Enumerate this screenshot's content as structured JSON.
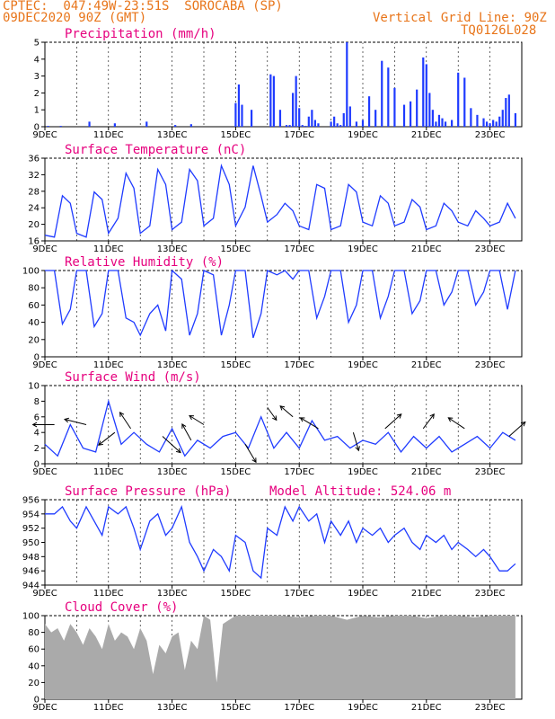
{
  "header": {
    "line1": "CPTEC:  047:49W-23:51S  SOROCABA (SP)",
    "line2": "09DEC2020 90Z (GMT)",
    "grid_note": "Vertical Grid Line: 90Z",
    "code": "TQ0126L028"
  },
  "chart_data": [
    {
      "type": "bar",
      "title": "Precipitation (mm/h)",
      "ylim": [
        0,
        5
      ],
      "yticks": [
        "0",
        "1",
        "2",
        "3",
        "4",
        "5"
      ],
      "x_labels": [
        "9DEC",
        "11DEC",
        "13DEC",
        "15DEC",
        "17DEC",
        "19DEC",
        "21DEC",
        "23DEC"
      ],
      "color": "#1f3bff",
      "x": [
        0.1,
        0.5,
        1.4,
        2.2,
        3.2,
        4.1,
        4.6,
        6.0,
        6.1,
        6.2,
        6.5,
        7.1,
        7.2,
        7.4,
        7.6,
        7.7,
        7.8,
        7.9,
        8.0,
        8.1,
        8.2,
        8.3,
        8.4,
        8.5,
        8.6,
        9.0,
        9.1,
        9.2,
        9.3,
        9.4,
        9.5,
        9.6,
        9.8,
        10.0,
        10.2,
        10.4,
        10.6,
        10.8,
        11.0,
        11.3,
        11.5,
        11.7,
        11.9,
        12.0,
        12.1,
        12.2,
        12.3,
        12.4,
        12.5,
        12.6,
        12.8,
        13.0,
        13.2,
        13.4,
        13.6,
        13.8,
        13.9,
        14.0,
        14.1,
        14.2,
        14.3,
        14.4,
        14.5,
        14.6,
        14.8
      ],
      "values": [
        0.05,
        0.05,
        0.3,
        0.2,
        0.3,
        0.1,
        0.15,
        1.4,
        2.5,
        1.3,
        1.0,
        3.1,
        3.0,
        1.0,
        0.1,
        0.1,
        2.0,
        3.0,
        1.1,
        0.1,
        0.05,
        0.6,
        1.0,
        0.4,
        0.2,
        0.3,
        0.6,
        0.2,
        0.1,
        0.8,
        5.0,
        1.2,
        0.3,
        0.4,
        1.8,
        1.0,
        3.9,
        3.5,
        2.3,
        1.3,
        1.5,
        2.2,
        4.1,
        3.7,
        2.0,
        1.0,
        0.3,
        0.7,
        0.5,
        0.3,
        0.4,
        3.2,
        2.9,
        1.1,
        0.7,
        0.5,
        0.3,
        0.2,
        0.4,
        0.3,
        0.6,
        1.0,
        1.7,
        1.9,
        0.8
      ]
    },
    {
      "type": "line",
      "title": "Surface Temperature (nC)",
      "ylim": [
        16,
        38
      ],
      "yticks": [
        "16",
        "20",
        "24",
        "28",
        "32",
        "36"
      ],
      "x_labels": [
        "9DEC",
        "11DEC",
        "13DEC",
        "15DEC",
        "17DEC",
        "19DEC",
        "21DEC",
        "23DEC"
      ],
      "color": "#1f3bff",
      "x": [
        0,
        0.3,
        0.55,
        0.8,
        1.0,
        1.3,
        1.55,
        1.8,
        2.0,
        2.3,
        2.55,
        2.8,
        3.0,
        3.3,
        3.55,
        3.8,
        4.0,
        4.3,
        4.55,
        4.8,
        5.0,
        5.3,
        5.55,
        5.8,
        6.0,
        6.3,
        6.55,
        6.8,
        7.0,
        7.3,
        7.55,
        7.8,
        8.0,
        8.3,
        8.55,
        8.8,
        9.0,
        9.3,
        9.55,
        9.8,
        10.0,
        10.3,
        10.55,
        10.8,
        11.0,
        11.3,
        11.55,
        11.8,
        12.0,
        12.3,
        12.55,
        12.8,
        13.0,
        13.3,
        13.55,
        13.8,
        14.0,
        14.3,
        14.55,
        14.8
      ],
      "values": [
        17.5,
        17,
        28,
        26,
        18,
        17,
        29,
        27,
        18,
        22,
        34,
        30,
        18,
        20,
        35,
        31,
        19,
        21,
        35,
        32,
        20,
        22,
        36,
        31,
        20,
        25,
        36,
        28,
        21,
        23,
        26,
        24,
        20,
        19,
        31,
        30,
        19,
        20,
        31,
        29,
        21,
        20,
        28,
        26,
        20,
        21,
        27,
        25,
        19,
        20,
        26,
        24,
        21,
        20,
        24,
        22,
        20,
        21,
        26,
        22
      ]
    },
    {
      "type": "line",
      "title": "Relative Humidity (%)",
      "ylim": [
        0,
        100
      ],
      "yticks": [
        "0",
        "20",
        "40",
        "60",
        "80",
        "100"
      ],
      "x_labels": [
        "9DEC",
        "11DEC",
        "13DEC",
        "15DEC",
        "17DEC",
        "19DEC",
        "21DEC",
        "23DEC"
      ],
      "color": "#1f3bff",
      "x": [
        0,
        0.3,
        0.55,
        0.8,
        1.0,
        1.3,
        1.55,
        1.8,
        2.0,
        2.3,
        2.55,
        2.8,
        3.0,
        3.3,
        3.55,
        3.8,
        4.0,
        4.3,
        4.55,
        4.8,
        5.0,
        5.3,
        5.55,
        5.8,
        6.0,
        6.3,
        6.55,
        6.8,
        7.0,
        7.3,
        7.55,
        7.8,
        8.0,
        8.3,
        8.55,
        8.8,
        9.0,
        9.3,
        9.55,
        9.8,
        10.0,
        10.3,
        10.55,
        10.8,
        11.0,
        11.3,
        11.55,
        11.8,
        12.0,
        12.3,
        12.55,
        12.8,
        13.0,
        13.3,
        13.55,
        13.8,
        14.0,
        14.3,
        14.55,
        14.8
      ],
      "values": [
        100,
        100,
        38,
        55,
        100,
        100,
        35,
        50,
        100,
        100,
        45,
        40,
        25,
        50,
        60,
        30,
        100,
        90,
        25,
        50,
        100,
        95,
        25,
        60,
        100,
        100,
        22,
        50,
        100,
        95,
        100,
        90,
        100,
        100,
        45,
        70,
        100,
        100,
        40,
        60,
        100,
        100,
        45,
        70,
        100,
        100,
        50,
        65,
        100,
        100,
        60,
        75,
        100,
        100,
        60,
        75,
        100,
        100,
        55,
        100
      ]
    },
    {
      "type": "line",
      "title": "Surface Wind (m/s)",
      "ylim": [
        0,
        10
      ],
      "yticks": [
        "0",
        "2",
        "4",
        "6",
        "8",
        "10"
      ],
      "x_labels": [
        "9DEC",
        "11DEC",
        "13DEC",
        "15DEC",
        "17DEC",
        "19DEC",
        "21DEC",
        "23DEC"
      ],
      "color": "#1f3bff",
      "x": [
        0,
        0.4,
        0.8,
        1.2,
        1.6,
        2.0,
        2.4,
        2.8,
        3.2,
        3.6,
        4.0,
        4.4,
        4.8,
        5.2,
        5.6,
        6.0,
        6.4,
        6.8,
        7.2,
        7.6,
        8.0,
        8.4,
        8.8,
        9.2,
        9.6,
        10.0,
        10.4,
        10.8,
        11.2,
        11.6,
        12.0,
        12.4,
        12.8,
        13.2,
        13.6,
        14.0,
        14.4,
        14.8
      ],
      "values": [
        2.5,
        1,
        5,
        2,
        1.5,
        8,
        2.5,
        4,
        2.5,
        1.5,
        4.5,
        1,
        3,
        2,
        3.5,
        4,
        2,
        6,
        2,
        4,
        2,
        5.5,
        3,
        3.5,
        2,
        3,
        2.5,
        4,
        1.5,
        3.5,
        2,
        3.5,
        1.5,
        2.5,
        3.5,
        2,
        4,
        3
      ],
      "arrows": [
        [
          0.3,
          5,
          -1.2,
          0
        ],
        [
          1.3,
          5,
          -1.2,
          0.3
        ],
        [
          2.2,
          4,
          -0.9,
          -0.7
        ],
        [
          2.7,
          4.5,
          -0.6,
          0.9
        ],
        [
          3.7,
          3.5,
          1,
          -0.9
        ],
        [
          4.6,
          3,
          -0.5,
          0.9
        ],
        [
          5.0,
          5,
          -0.8,
          0.5
        ],
        [
          6.3,
          2.5,
          0.6,
          -1
        ],
        [
          7.0,
          7.2,
          0.5,
          -0.7
        ],
        [
          7.8,
          6,
          -0.7,
          0.6
        ],
        [
          8.6,
          4.5,
          -1,
          0.6
        ],
        [
          9.7,
          4,
          0.3,
          -1
        ],
        [
          10.7,
          4.5,
          0.9,
          0.8
        ],
        [
          11.9,
          4.5,
          0.6,
          0.8
        ],
        [
          13.2,
          4.5,
          -0.9,
          0.6
        ],
        [
          14.6,
          3.5,
          0.9,
          0.8
        ]
      ]
    },
    {
      "type": "line",
      "title": "Surface Pressure (hPa)",
      "ylim": [
        944,
        956
      ],
      "yticks": [
        "944",
        "946",
        "948",
        "950",
        "952",
        "954",
        "956"
      ],
      "x_labels": [
        "9DEC",
        "11DEC",
        "13DEC",
        "15DEC",
        "17DEC",
        "19DEC",
        "21DEC",
        "23DEC"
      ],
      "color": "#1f3bff",
      "annotation": "Model Altitude: 524.06 m",
      "x": [
        0,
        0.3,
        0.55,
        0.8,
        1.0,
        1.3,
        1.55,
        1.8,
        2.0,
        2.3,
        2.55,
        2.8,
        3.0,
        3.3,
        3.55,
        3.8,
        4.0,
        4.3,
        4.55,
        4.8,
        5.0,
        5.3,
        5.55,
        5.8,
        6.0,
        6.3,
        6.55,
        6.8,
        7.0,
        7.3,
        7.55,
        7.8,
        8.0,
        8.3,
        8.55,
        8.8,
        9.0,
        9.3,
        9.55,
        9.8,
        10.0,
        10.3,
        10.55,
        10.8,
        11.0,
        11.3,
        11.55,
        11.8,
        12.0,
        12.3,
        12.55,
        12.8,
        13.0,
        13.3,
        13.55,
        13.8,
        14.0,
        14.3,
        14.55,
        14.8
      ],
      "values": [
        954,
        954,
        955,
        953,
        952,
        955,
        953,
        951,
        955,
        954,
        955,
        952,
        949,
        953,
        954,
        951,
        952,
        955,
        950,
        948,
        946,
        949,
        948,
        946,
        951,
        950,
        946,
        945,
        952,
        951,
        955,
        953,
        955,
        953,
        954,
        950,
        953,
        951,
        953,
        950,
        952,
        951,
        952,
        950,
        951,
        952,
        950,
        949,
        951,
        950,
        951,
        949,
        950,
        949,
        948,
        949,
        948,
        946,
        946,
        947
      ]
    },
    {
      "type": "area",
      "title": "Cloud Cover (%)",
      "ylim": [
        0,
        100
      ],
      "yticks": [
        "0",
        "20",
        "40",
        "60",
        "80",
        "100"
      ],
      "x_labels": [
        "9DEC",
        "11DEC",
        "13DEC",
        "15DEC",
        "17DEC",
        "19DEC",
        "21DEC",
        "23DEC"
      ],
      "color": "#aaaaaa",
      "x": [
        0,
        0.2,
        0.4,
        0.6,
        0.8,
        1.0,
        1.2,
        1.4,
        1.6,
        1.8,
        2.0,
        2.2,
        2.4,
        2.6,
        2.8,
        3.0,
        3.2,
        3.4,
        3.6,
        3.8,
        4.0,
        4.2,
        4.4,
        4.6,
        4.8,
        5.0,
        5.2,
        5.4,
        5.6,
        5.8,
        6.0,
        6.5,
        7.0,
        7.5,
        8.0,
        8.5,
        9.0,
        9.5,
        10.0,
        10.5,
        11.0,
        11.5,
        12.0,
        12.5,
        13.0,
        13.5,
        14.0,
        14.5,
        14.8
      ],
      "values": [
        90,
        80,
        85,
        70,
        90,
        80,
        65,
        85,
        75,
        60,
        90,
        70,
        80,
        75,
        60,
        85,
        70,
        30,
        65,
        55,
        75,
        80,
        35,
        70,
        60,
        100,
        95,
        20,
        90,
        95,
        100,
        100,
        100,
        100,
        98,
        100,
        100,
        95,
        100,
        98,
        100,
        100,
        97,
        100,
        100,
        98,
        100,
        100,
        100
      ]
    }
  ]
}
